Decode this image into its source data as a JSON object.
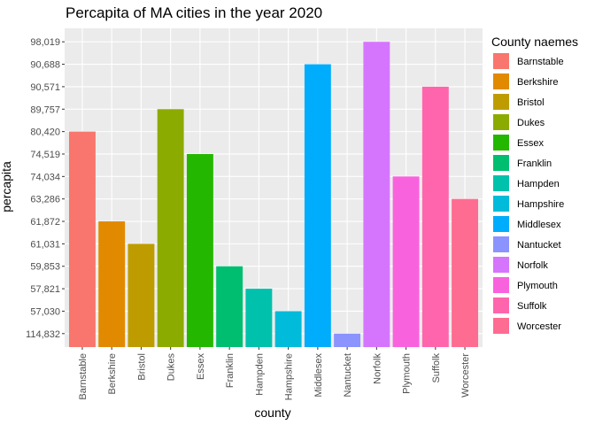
{
  "chart_data": {
    "type": "bar",
    "title": "Percapita of MA cities in the year 2020",
    "xlabel": "county",
    "ylabel": "percapita",
    "y_axis_note": "categorical y axis: tick labels are discrete levels in this order from bottom to top",
    "y_levels": [
      "114,832",
      "57,030",
      "57,821",
      "59,853",
      "61,031",
      "61,872",
      "63,286",
      "74,034",
      "74,519",
      "80,420",
      "89,757",
      "90,571",
      "90,688",
      "98,019"
    ],
    "categories": [
      "Barnstable",
      "Berkshire",
      "Bristol",
      "Dukes",
      "Essex",
      "Franklin",
      "Hampden",
      "Hampshire",
      "Middlesex",
      "Nantucket",
      "Norfolk",
      "Plymouth",
      "Suffolk",
      "Worcester"
    ],
    "values": [
      "80,420",
      "61,872",
      "61,031",
      "89,757",
      "74,519",
      "59,853",
      "57,821",
      "57,030",
      "90,688",
      "114,832",
      "98,019",
      "74,034",
      "90,571",
      "63,286"
    ],
    "colors": [
      "#F8766D",
      "#E18A00",
      "#BE9C00",
      "#8CAB00",
      "#24B700",
      "#00BE70",
      "#00C1AB",
      "#00BBDA",
      "#00ACFC",
      "#8B93FF",
      "#D575FE",
      "#F962DD",
      "#FF65AC",
      "#FF6C91"
    ],
    "grid": true,
    "legend": {
      "title": "County naemes",
      "placement": "right",
      "entries": [
        "Barnstable",
        "Berkshire",
        "Bristol",
        "Dukes",
        "Essex",
        "Franklin",
        "Hampden",
        "Hampshire",
        "Middlesex",
        "Nantucket",
        "Norfolk",
        "Plymouth",
        "Suffolk",
        "Worcester"
      ]
    }
  }
}
